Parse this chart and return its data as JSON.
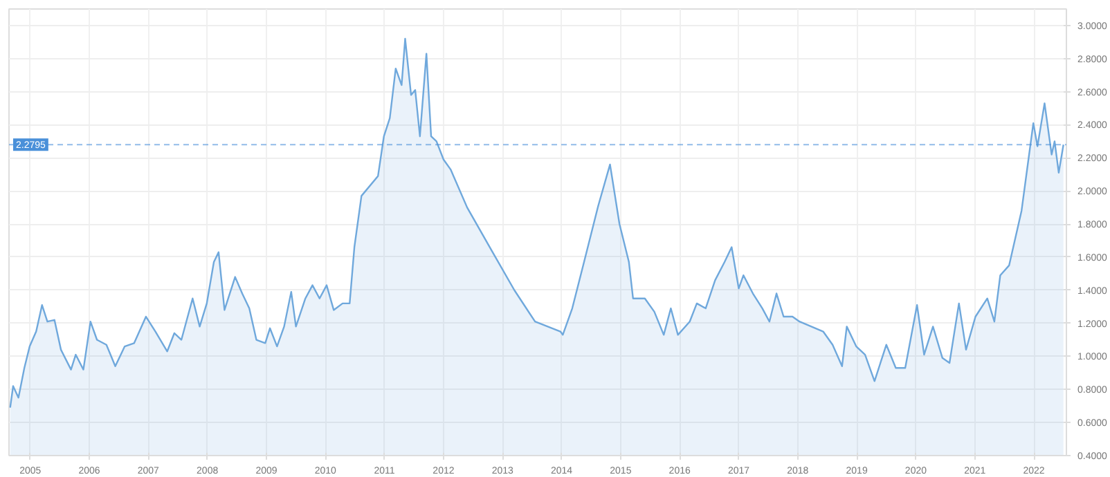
{
  "chart_data": {
    "type": "area",
    "color": "#6fa8dc",
    "x": [
      2004.66,
      2004.71,
      2004.8,
      2004.9,
      2004.99,
      2005.1,
      2005.2,
      2005.29,
      2005.41,
      2005.52,
      2005.69,
      2005.77,
      2005.9,
      2006.02,
      2006.13,
      2006.29,
      2006.44,
      2006.6,
      2006.76,
      2006.96,
      2007.12,
      2007.32,
      2007.44,
      2007.56,
      2007.75,
      2007.87,
      2007.99,
      2008.11,
      2008.19,
      2008.29,
      2008.47,
      2008.59,
      2008.71,
      2008.83,
      2008.98,
      2009.06,
      2009.18,
      2009.3,
      2009.42,
      2009.5,
      2009.66,
      2009.78,
      2009.9,
      2010.02,
      2010.14,
      2010.29,
      2010.41,
      2010.49,
      2010.61,
      2010.89,
      2010.99,
      2011.09,
      2011.19,
      2011.29,
      2011.35,
      2011.45,
      2011.52,
      2011.6,
      2011.71,
      2011.79,
      2011.88,
      2012.0,
      2012.12,
      2012.4,
      2012.83,
      2013.2,
      2013.55,
      2013.98,
      2014.02,
      2014.18,
      2014.38,
      2014.62,
      2014.82,
      2014.98,
      2015.14,
      2015.21,
      2015.41,
      2015.57,
      2015.73,
      2015.85,
      2015.97,
      2016.17,
      2016.29,
      2016.44,
      2016.6,
      2016.76,
      2016.88,
      2017.0,
      2017.08,
      2017.24,
      2017.4,
      2017.52,
      2017.64,
      2017.76,
      2017.91,
      2018.03,
      2018.23,
      2018.43,
      2018.59,
      2018.75,
      2018.83,
      2018.99,
      2019.14,
      2019.3,
      2019.5,
      2019.66,
      2019.82,
      2020.02,
      2020.14,
      2020.29,
      2020.45,
      2020.57,
      2020.73,
      2020.85,
      2021.01,
      2021.21,
      2021.33,
      2021.43,
      2021.58,
      2021.79,
      2021.99,
      2022.06,
      2022.18,
      2022.3,
      2022.35,
      2022.42,
      2022.5
    ],
    "values": [
      0.69,
      0.82,
      0.75,
      0.93,
      1.06,
      1.15,
      1.31,
      1.21,
      1.22,
      1.04,
      0.92,
      1.01,
      0.92,
      1.21,
      1.1,
      1.07,
      0.94,
      1.06,
      1.08,
      1.24,
      1.15,
      1.03,
      1.14,
      1.1,
      1.35,
      1.18,
      1.32,
      1.57,
      1.63,
      1.28,
      1.48,
      1.38,
      1.29,
      1.1,
      1.08,
      1.17,
      1.06,
      1.18,
      1.39,
      1.18,
      1.35,
      1.43,
      1.35,
      1.43,
      1.28,
      1.32,
      1.32,
      1.66,
      1.97,
      2.09,
      2.33,
      2.44,
      2.74,
      2.64,
      2.92,
      2.58,
      2.61,
      2.33,
      2.83,
      2.33,
      2.3,
      2.19,
      2.13,
      1.9,
      1.63,
      1.4,
      1.21,
      1.15,
      1.13,
      1.29,
      1.57,
      1.91,
      2.16,
      1.8,
      1.57,
      1.35,
      1.35,
      1.27,
      1.13,
      1.29,
      1.13,
      1.21,
      1.32,
      1.29,
      1.46,
      1.57,
      1.66,
      1.41,
      1.49,
      1.38,
      1.29,
      1.21,
      1.38,
      1.24,
      1.24,
      1.21,
      1.18,
      1.15,
      1.07,
      0.94,
      1.18,
      1.06,
      1.01,
      0.85,
      1.07,
      0.93,
      0.93,
      1.31,
      1.01,
      1.18,
      0.99,
      0.96,
      1.32,
      1.04,
      1.24,
      1.35,
      1.21,
      1.49,
      1.55,
      1.88,
      2.41,
      2.27,
      2.53,
      2.22,
      2.3,
      2.11,
      2.28
    ],
    "xlim": [
      2004.64,
      2022.55
    ],
    "ylim": [
      0.4,
      3.1
    ],
    "xticks": [
      2005,
      2006,
      2007,
      2008,
      2009,
      2010,
      2011,
      2012,
      2013,
      2014,
      2015,
      2016,
      2017,
      2018,
      2019,
      2020,
      2021,
      2022
    ],
    "yticks": [
      {
        "value": 0.4,
        "label": "0.4000"
      },
      {
        "value": 0.6,
        "label": "0.6000"
      },
      {
        "value": 0.8,
        "label": "0.8000"
      },
      {
        "value": 1.0,
        "label": "1.0000"
      },
      {
        "value": 1.2,
        "label": "1.2000"
      },
      {
        "value": 1.4,
        "label": "1.4000"
      },
      {
        "value": 1.6,
        "label": "1.6000"
      },
      {
        "value": 1.8,
        "label": "1.8000"
      },
      {
        "value": 2.0,
        "label": "2.0000"
      },
      {
        "value": 2.2,
        "label": "2.2000"
      },
      {
        "value": 2.4,
        "label": "2.4000"
      },
      {
        "value": 2.6,
        "label": "2.6000"
      },
      {
        "value": 2.8,
        "label": "2.8000"
      },
      {
        "value": 3.0,
        "label": "3.0000"
      }
    ],
    "ref_lines": [
      {
        "axis": "y",
        "value": 2.2795,
        "label": "2.2795",
        "color": "#4a90d9",
        "line_style": "dashed"
      }
    ],
    "grid": true
  }
}
